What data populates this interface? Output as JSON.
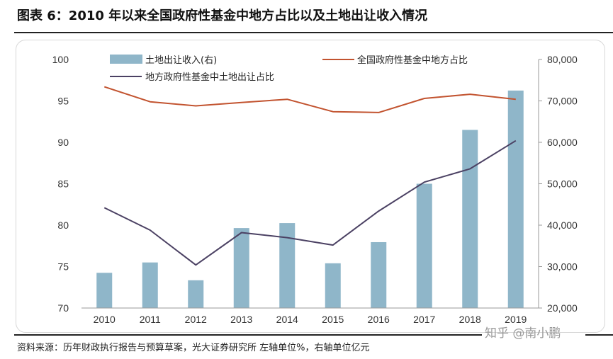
{
  "title": "图表 6：2010 年以来全国政府性基金中地方占比以及土地出让收入情况",
  "source": "资料来源：历年财政执行报告与预算草案，光大证券研究所   左轴单位%，右轴单位亿元",
  "watermark": "知乎 @南小鹏",
  "chart_data": {
    "type": "bar",
    "categories": [
      "2010",
      "2011",
      "2012",
      "2013",
      "2014",
      "2015",
      "2016",
      "2017",
      "2018",
      "2019"
    ],
    "series": [
      {
        "name": "土地出让收入(右)",
        "type": "bar",
        "axis": "right",
        "color": "#8fb6c9",
        "values": [
          28500,
          31000,
          26700,
          39300,
          40500,
          30800,
          35900,
          50000,
          63000,
          72500
        ]
      },
      {
        "name": "全国政府性基金中地方占比",
        "type": "line",
        "axis": "left",
        "color": "#c2532f",
        "values": [
          96.7,
          94.9,
          94.4,
          94.8,
          95.2,
          93.7,
          93.6,
          95.3,
          95.8,
          95.2
        ]
      },
      {
        "name": "地方政府性基金中土地出让占比",
        "type": "line",
        "axis": "left",
        "color": "#4b4163",
        "values": [
          82.1,
          79.4,
          75.2,
          79.1,
          78.5,
          77.6,
          81.7,
          85.2,
          86.8,
          90.2
        ]
      }
    ],
    "y_left": {
      "min": 70,
      "max": 100,
      "ticks": [
        "100",
        "95",
        "90",
        "85",
        "80",
        "75",
        "70"
      ]
    },
    "y_right": {
      "min": 20000,
      "max": 80000,
      "ticks": [
        "80,000",
        "70,000",
        "60,000",
        "50,000",
        "40,000",
        "30,000",
        "20,000"
      ]
    },
    "legend_position": "top",
    "grid": false
  }
}
